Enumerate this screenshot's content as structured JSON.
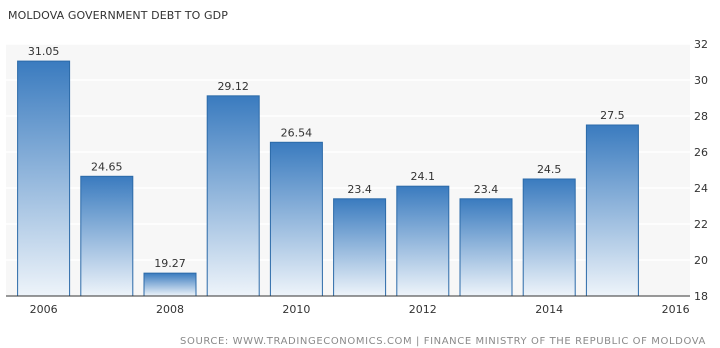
{
  "header": {
    "title": "MOLDOVA GOVERNMENT DEBT TO GDP"
  },
  "footer": {
    "source": "SOURCE: WWW.TRADINGECONOMICS.COM | FINANCE MINISTRY OF THE REPUBLIC OF MOLDOVA"
  },
  "colors": {
    "bar_top": "#3a7bbf",
    "bar_bottom": "#eef4fa",
    "bar_stroke": "#2b6aa8",
    "plot_background": "#f7f7f7",
    "gridline": "#ffffff",
    "axis_line": "#333333",
    "tick_text": "#333333"
  },
  "chart_data": {
    "type": "bar",
    "title": "MOLDOVA GOVERNMENT DEBT TO GDP",
    "categories": [
      "2006",
      "2007",
      "2008",
      "2009",
      "2010",
      "2011",
      "2012",
      "2013",
      "2014",
      "2015"
    ],
    "values": [
      31.05,
      24.65,
      19.27,
      29.12,
      26.54,
      23.4,
      24.1,
      23.4,
      24.5,
      27.5
    ],
    "value_labels": [
      "31.05",
      "24.65",
      "19.27",
      "29.12",
      "26.54",
      "23.4",
      "24.1",
      "23.4",
      "24.5",
      "27.5"
    ],
    "x_ticks": [
      "2006",
      "2008",
      "2010",
      "2012",
      "2014",
      "2016"
    ],
    "y_ticks": [
      18,
      20,
      22,
      24,
      26,
      28,
      30,
      32
    ],
    "ylim": [
      18,
      32
    ],
    "y_axis_side": "right",
    "grid": true,
    "legend": "none",
    "xlabel": "",
    "ylabel": ""
  }
}
